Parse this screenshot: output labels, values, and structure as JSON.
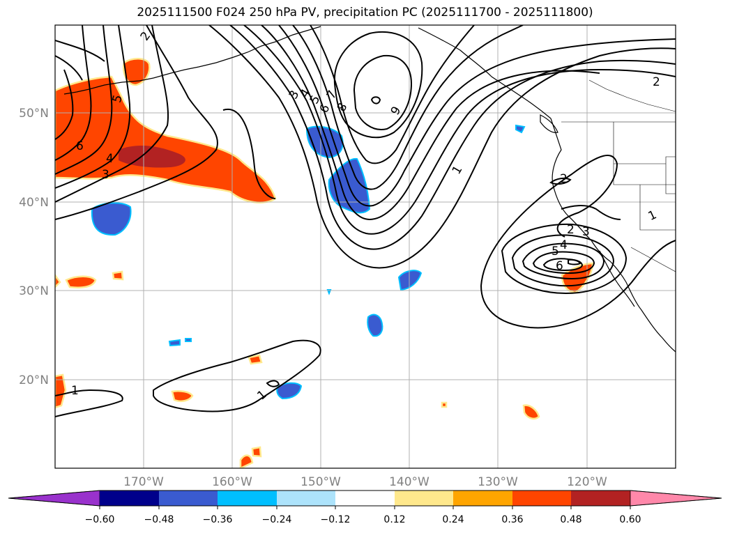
{
  "title": "2025111500 F024 250 hPa PV, precipitation PC (2025111700 - 2025111800)",
  "latitude_labels": [
    "50°N",
    "40°N",
    "30°N",
    "20°N"
  ],
  "longitude_labels": [
    "170°W",
    "160°W",
    "150°W",
    "140°W",
    "130°W",
    "120°W"
  ],
  "colorbar": {
    "tick_labels": [
      "−0.60",
      "−0.48",
      "−0.36",
      "−0.24",
      "−0.12",
      "0.12",
      "0.24",
      "0.36",
      "0.48",
      "0.60"
    ],
    "colors": [
      "#9932cc",
      "#00008b",
      "#3a5bd0",
      "#00bfff",
      "#ade3fb",
      "#ffffff",
      "#ffe88c",
      "#ffa500",
      "#ff4500",
      "#b22222",
      "#ff88aa"
    ]
  },
  "contour_labels": [
    "2",
    "5",
    "6",
    "4",
    "3",
    "3",
    "4",
    "5",
    "7",
    "6",
    "8",
    "9",
    "1",
    "2",
    "2",
    "1",
    "2",
    "3",
    "5",
    "4",
    "6",
    "1",
    "1"
  ],
  "colors": {
    "negative_fill": "#3a5bd0",
    "light_negative": "#00bfff",
    "positive_red": "#ff4500",
    "positive_dark": "#b22222",
    "positive_yellow": "#ffe88c",
    "grid": "#b0b0b0"
  }
}
